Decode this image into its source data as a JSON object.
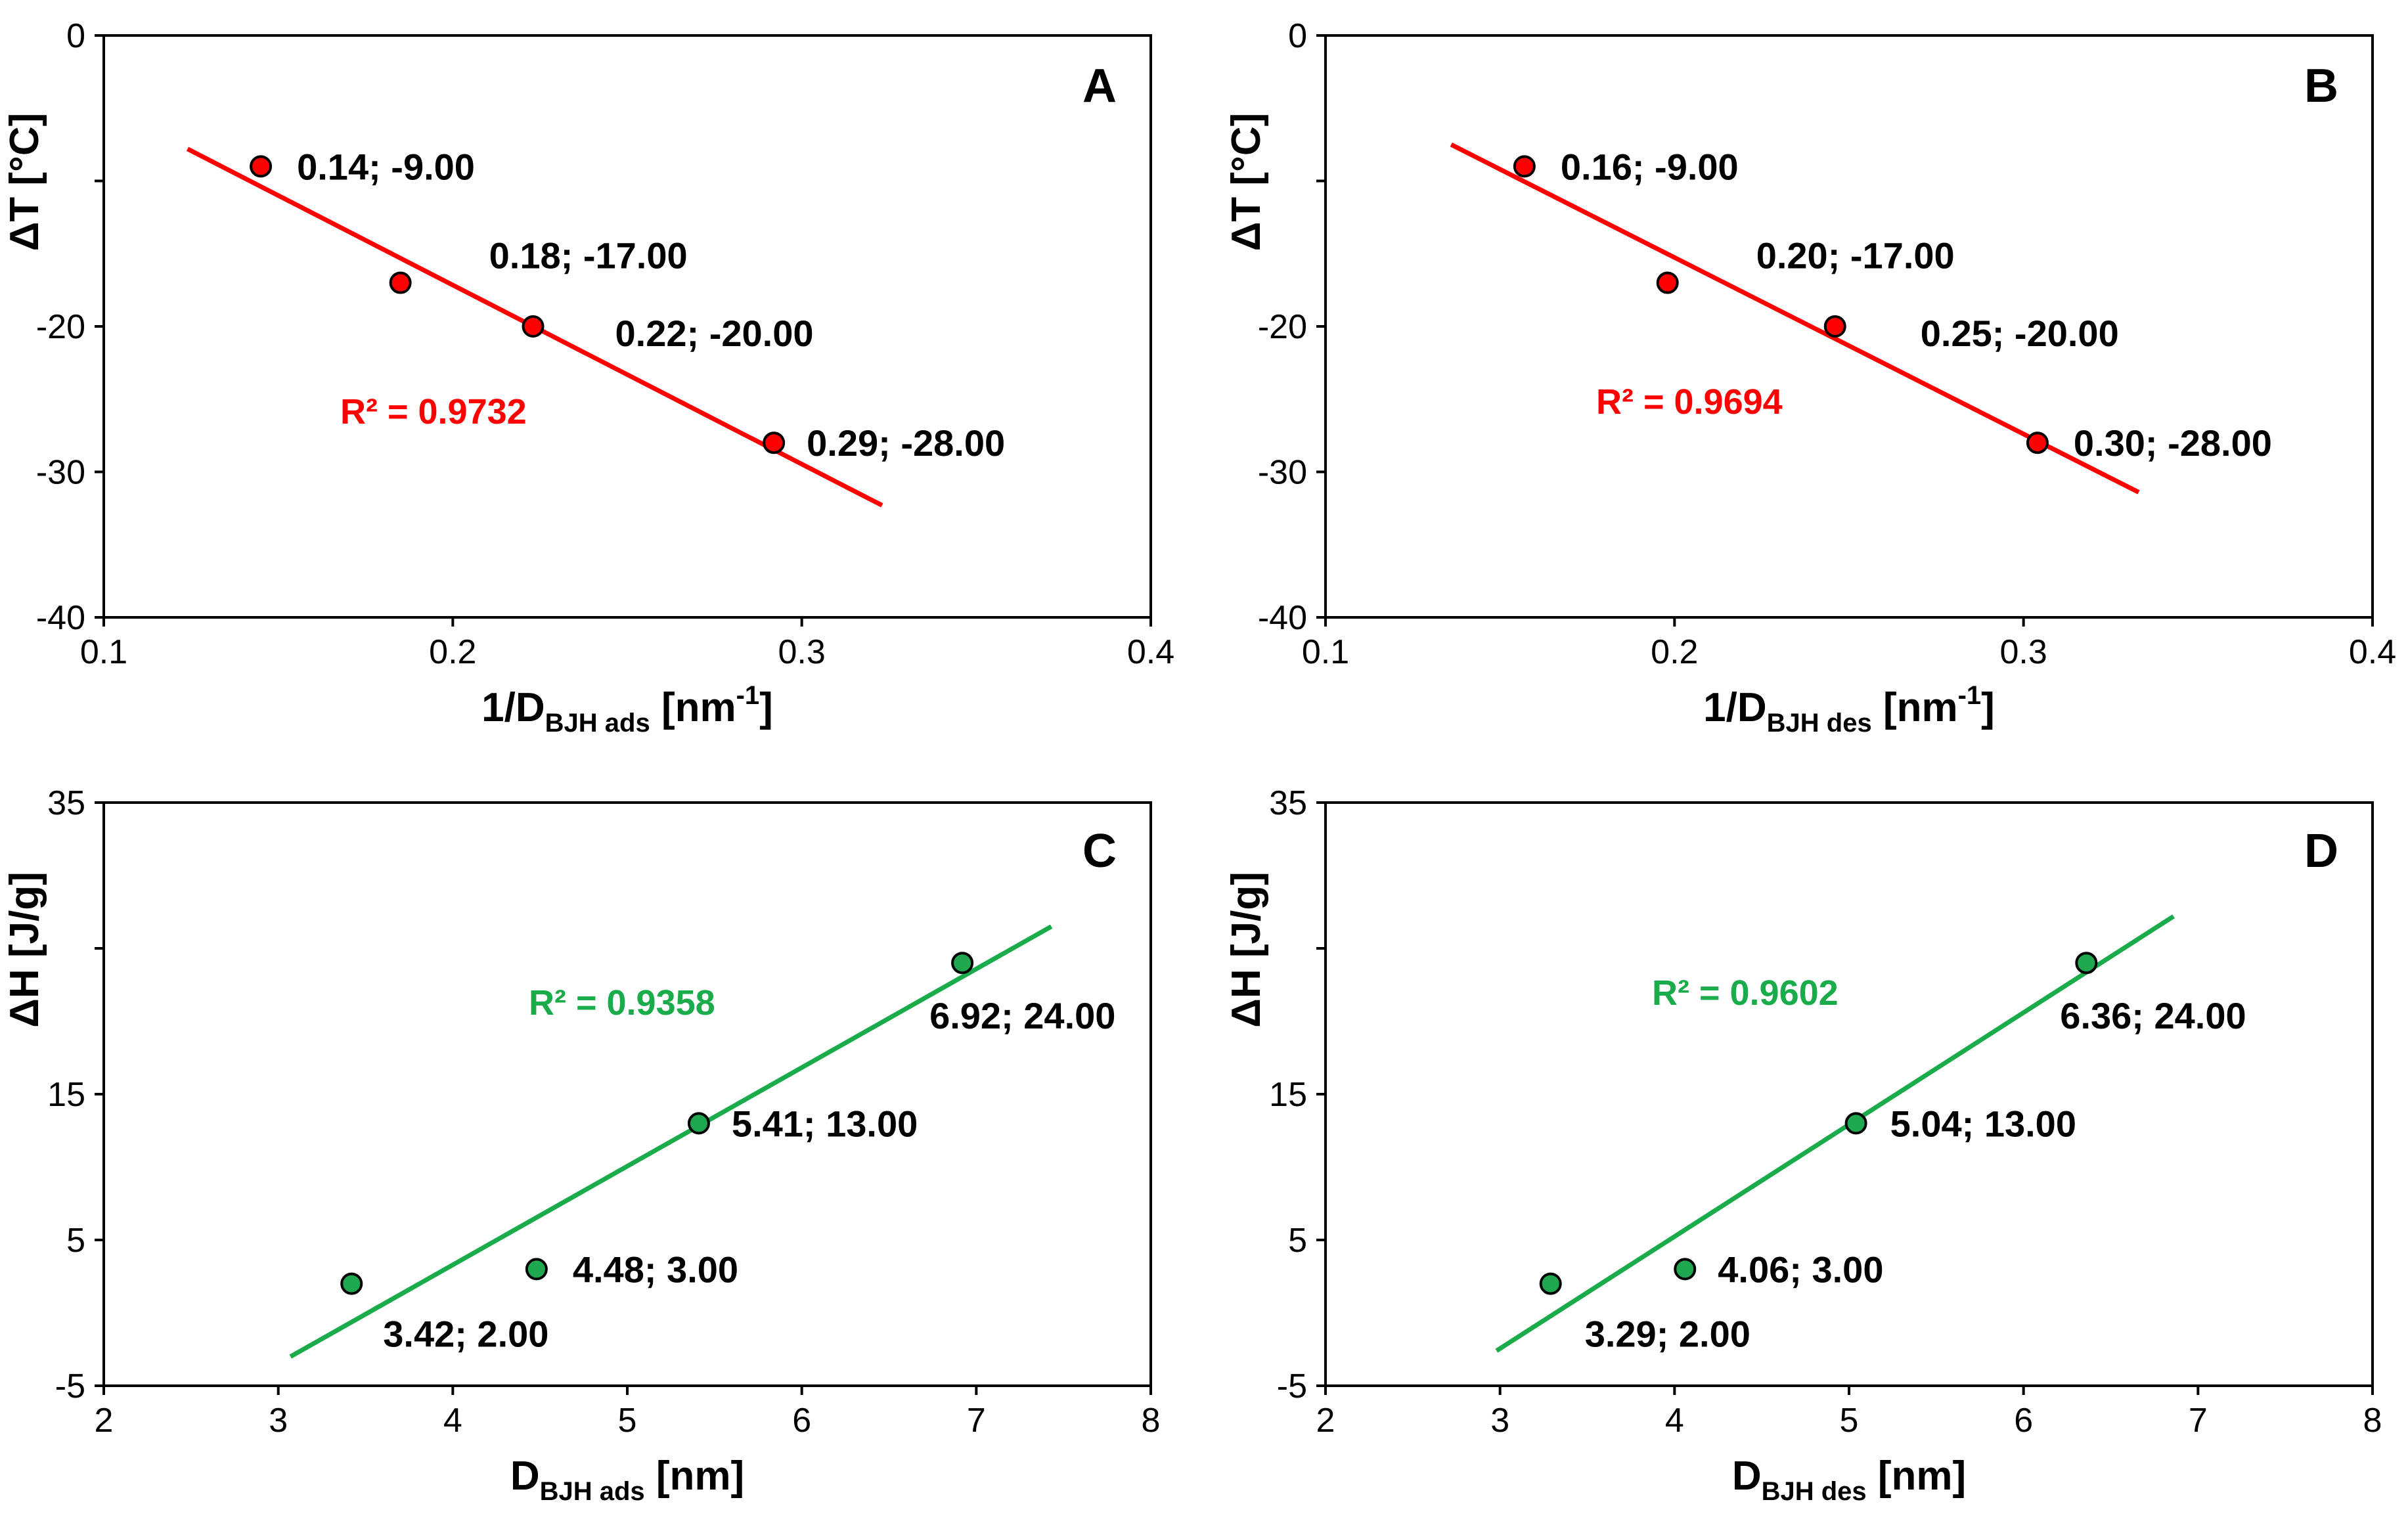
{
  "chart_data": [
    {
      "type": "scatter",
      "panel": "A",
      "color": "#ff0000",
      "lineColor": "#ff0000",
      "xlim": [
        0.1,
        0.4
      ],
      "ylim": [
        -40,
        0
      ],
      "xticks": [
        "0.1",
        "0.2",
        "0.3",
        "0.4"
      ],
      "yticks": [
        "-40",
        "-30",
        "-20",
        "",
        "0"
      ],
      "xlabel": {
        "main": "1/D",
        "sub": "BJH ads",
        "unit": " [nm",
        "sup": "-1",
        "end": "]"
      },
      "ylabel": "ΔT [°C]",
      "r2": "R² = 0.9732",
      "points": [
        {
          "x": 0.145,
          "y": -9,
          "label": "0.14; -9.00"
        },
        {
          "x": 0.185,
          "y": -17,
          "label": "0.18; -17.00"
        },
        {
          "x": 0.223,
          "y": -20,
          "label": "0.22; -20.00"
        },
        {
          "x": 0.292,
          "y": -28,
          "label": "0.29; -28.00"
        }
      ],
      "trend": [
        [
          0.124,
          -7.8
        ],
        [
          0.323,
          -32.3
        ]
      ]
    },
    {
      "type": "scatter",
      "panel": "B",
      "color": "#ff0000",
      "lineColor": "#ff0000",
      "xlim": [
        0.1,
        0.4
      ],
      "ylim": [
        -40,
        0
      ],
      "xticks": [
        "0.1",
        "0.2",
        "0.3",
        "0.4"
      ],
      "yticks": [
        "-40",
        "-30",
        "-20",
        "",
        "0"
      ],
      "xlabel": {
        "main": "1/D",
        "sub": "BJH des",
        "unit": " [nm",
        "sup": "-1",
        "end": "]"
      },
      "ylabel": "ΔT [°C]",
      "r2": "R² = 0.9694",
      "points": [
        {
          "x": 0.157,
          "y": -9,
          "label": "0.16; -9.00"
        },
        {
          "x": 0.198,
          "y": -17,
          "label": "0.20; -17.00"
        },
        {
          "x": 0.246,
          "y": -20,
          "label": "0.25; -20.00"
        },
        {
          "x": 0.304,
          "y": -28,
          "label": "0.30; -28.00"
        }
      ],
      "trend": [
        [
          0.136,
          -7.5
        ],
        [
          0.333,
          -31.4
        ]
      ]
    },
    {
      "type": "scatter",
      "panel": "C",
      "color": "#1fa84f",
      "lineColor": "#1aab4b",
      "xlim": [
        2,
        8
      ],
      "ylim": [
        -5,
        35
      ],
      "xticks": [
        "2",
        "3",
        "4",
        "5",
        "6",
        "7",
        "8"
      ],
      "yticks": [
        "-5",
        "5",
        "15",
        "",
        "35"
      ],
      "xlabel": {
        "main": "D",
        "sub": "BJH ads",
        "unit": " [nm",
        "sup": "",
        "end": "]"
      },
      "ylabel": "ΔH [J/g]",
      "r2": "R² = 0.9358",
      "points": [
        {
          "x": 3.42,
          "y": 2,
          "label": "3.42; 2.00"
        },
        {
          "x": 4.48,
          "y": 3,
          "label": "4.48; 3.00"
        },
        {
          "x": 5.41,
          "y": 13,
          "label": "5.41; 13.00"
        },
        {
          "x": 6.92,
          "y": 24,
          "label": "6.92; 24.00"
        }
      ],
      "trend": [
        [
          3.07,
          -3.0
        ],
        [
          7.43,
          26.5
        ]
      ]
    },
    {
      "type": "scatter",
      "panel": "D",
      "color": "#1fa84f",
      "lineColor": "#1aab4b",
      "xlim": [
        2,
        8
      ],
      "ylim": [
        -5,
        35
      ],
      "xticks": [
        "2",
        "3",
        "4",
        "5",
        "6",
        "7",
        "8"
      ],
      "yticks": [
        "-5",
        "5",
        "15",
        "",
        "35"
      ],
      "xlabel": {
        "main": "D",
        "sub": "BJH des",
        "unit": " [nm",
        "sup": "",
        "end": "]"
      },
      "ylabel": "ΔH [J/g]",
      "r2": "R² = 0.9602",
      "points": [
        {
          "x": 3.29,
          "y": 2,
          "label": "3.29; 2.00"
        },
        {
          "x": 4.06,
          "y": 3,
          "label": "4.06; 3.00"
        },
        {
          "x": 5.04,
          "y": 13,
          "label": "5.04; 13.00"
        },
        {
          "x": 6.36,
          "y": 24,
          "label": "6.36; 24.00"
        }
      ],
      "trend": [
        [
          2.98,
          -2.6
        ],
        [
          6.86,
          27.2
        ]
      ]
    }
  ]
}
